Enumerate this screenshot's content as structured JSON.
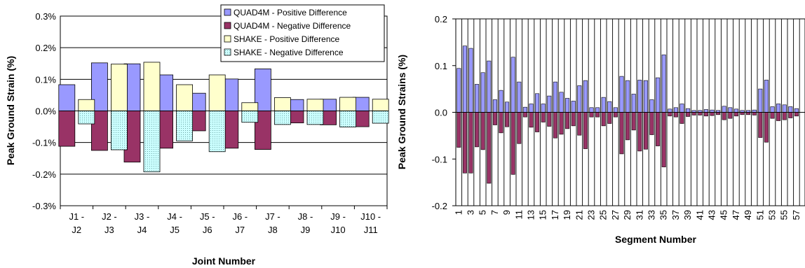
{
  "chart_data": [
    {
      "type": "bar",
      "ylabel": "Peak Ground Strain (%)",
      "xlabel": "Joint Number",
      "ylim": [
        -0.3,
        0.3
      ],
      "yticks": [
        "-0.3%",
        "-0.2%",
        "-0.1%",
        "0.0%",
        "0.1%",
        "0.2%",
        "0.3%"
      ],
      "ytick_values": [
        -0.3,
        -0.2,
        -0.1,
        0.0,
        0.1,
        0.2,
        0.3
      ],
      "grid": "horizontal",
      "legend_position": "top-right",
      "categories": [
        [
          "J1 -",
          "J2"
        ],
        [
          "J2 -",
          "J3"
        ],
        [
          "J3 -",
          "J4"
        ],
        [
          "J4 -",
          "J5"
        ],
        [
          "J5 -",
          "J6"
        ],
        [
          "J6 -",
          "J7"
        ],
        [
          "J7 -",
          "J8"
        ],
        [
          "J8 -",
          "J9"
        ],
        [
          "J9 -",
          "J10"
        ],
        [
          "J10 -",
          "J11"
        ]
      ],
      "series": [
        {
          "name": "QUAD4M - Positive Difference",
          "color": "#9999ff",
          "pattern": "solid",
          "stack": "pos",
          "col": 0,
          "values": [
            0.083,
            0.152,
            0.149,
            0.114,
            0.056,
            0.101,
            0.133,
            0.036,
            0.037,
            0.043
          ]
        },
        {
          "name": "QUAD4M - Negative Difference",
          "color": "#993366",
          "pattern": "solid",
          "stack": "neg",
          "col": 0,
          "values": [
            -0.112,
            -0.125,
            -0.162,
            -0.118,
            -0.063,
            -0.118,
            -0.122,
            -0.038,
            -0.044,
            -0.05
          ]
        },
        {
          "name": "SHAKE - Positive Difference",
          "color": "#ffffcc",
          "pattern": "solid",
          "stack": "pos",
          "col": 1,
          "values": [
            0.036,
            0.148,
            0.154,
            0.083,
            0.114,
            0.026,
            0.042,
            0.037,
            0.043,
            0.037
          ]
        },
        {
          "name": "SHAKE - Negative Difference",
          "color": "#ccffff",
          "pattern": "dotted",
          "stack": "neg",
          "col": 1,
          "values": [
            -0.041,
            -0.123,
            -0.193,
            -0.095,
            -0.129,
            -0.036,
            -0.043,
            -0.043,
            -0.051,
            -0.039
          ]
        }
      ]
    },
    {
      "type": "bar",
      "ylabel": "Peak Ground Strains (%)",
      "xlabel": "Segment Number",
      "ylim": [
        -0.2,
        0.2
      ],
      "yticks": [
        "-0.2",
        "-0.1",
        "0.0",
        "0.1",
        "0.2"
      ],
      "ytick_values": [
        -0.2,
        -0.1,
        0.0,
        0.1,
        0.2
      ],
      "grid": "vertical",
      "x": [
        1,
        2,
        3,
        4,
        5,
        6,
        7,
        8,
        9,
        10,
        11,
        12,
        13,
        14,
        15,
        16,
        17,
        18,
        19,
        20,
        21,
        22,
        23,
        24,
        25,
        26,
        27,
        28,
        29,
        30,
        31,
        32,
        33,
        34,
        35,
        36,
        37,
        38,
        39,
        40,
        41,
        42,
        43,
        44,
        45,
        46,
        47,
        48,
        49,
        50,
        51,
        52,
        53,
        54,
        55,
        56,
        57
      ],
      "xticks": [
        "1",
        "3",
        "5",
        "7",
        "9",
        "11",
        "13",
        "15",
        "17",
        "19",
        "21",
        "23",
        "25",
        "27",
        "29",
        "31",
        "33",
        "35",
        "37",
        "39",
        "41",
        "43",
        "45",
        "47",
        "49",
        "51",
        "53",
        "55",
        "57"
      ],
      "series": [
        {
          "color": "#9999ff",
          "values": [
            0.094,
            0.142,
            0.137,
            0.06,
            0.085,
            0.11,
            0.027,
            0.047,
            0.022,
            0.118,
            0.065,
            0.011,
            0.018,
            0.04,
            0.018,
            0.035,
            0.065,
            0.043,
            0.03,
            0.024,
            0.057,
            0.068,
            0.01,
            0.01,
            0.032,
            0.023,
            0.01,
            0.077,
            0.068,
            0.039,
            0.069,
            0.068,
            0.027,
            0.074,
            0.123,
            0.007,
            0.01,
            0.018,
            0.008,
            0.004,
            0.004,
            0.006,
            0.005,
            0.004,
            0.013,
            0.01,
            0.007,
            0.004,
            0.004,
            0.005,
            0.05,
            0.069,
            0.012,
            0.018,
            0.016,
            0.012,
            0.008
          ]
        },
        {
          "color": "#993366",
          "values": [
            -0.075,
            -0.13,
            -0.13,
            -0.074,
            -0.08,
            -0.152,
            -0.027,
            -0.044,
            -0.031,
            -0.133,
            -0.067,
            -0.01,
            -0.032,
            -0.042,
            -0.021,
            -0.03,
            -0.055,
            -0.047,
            -0.035,
            -0.029,
            -0.049,
            -0.078,
            -0.01,
            -0.01,
            -0.029,
            -0.024,
            -0.01,
            -0.089,
            -0.059,
            -0.038,
            -0.083,
            -0.079,
            -0.048,
            -0.072,
            -0.117,
            -0.008,
            -0.01,
            -0.024,
            -0.009,
            -0.006,
            -0.006,
            -0.008,
            -0.007,
            -0.005,
            -0.016,
            -0.013,
            -0.008,
            -0.005,
            -0.005,
            -0.006,
            -0.054,
            -0.064,
            -0.013,
            -0.018,
            -0.016,
            -0.012,
            -0.008
          ]
        }
      ]
    }
  ]
}
